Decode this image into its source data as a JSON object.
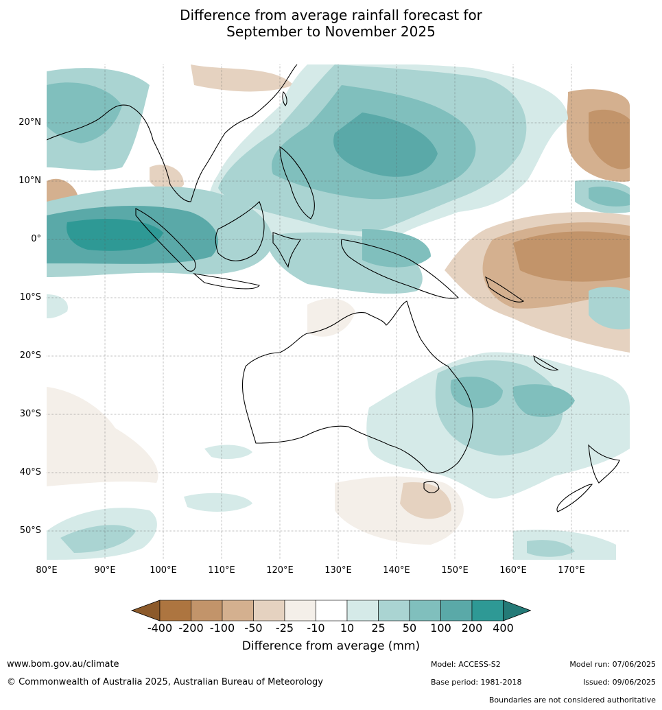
{
  "title_line1": "Difference from average rainfall forecast for",
  "title_line2": "September to November 2025",
  "lat_labels": [
    "20°N",
    "10°N",
    "0°",
    "10°S",
    "20°S",
    "30°S",
    "40°S",
    "50°S"
  ],
  "lon_labels": [
    "80°E",
    "90°E",
    "100°E",
    "110°E",
    "120°E",
    "130°E",
    "140°E",
    "150°E",
    "160°E",
    "170°E"
  ],
  "colorbar": {
    "label": "Difference from average (mm)",
    "ticks": [
      "-400",
      "-200",
      "-100",
      "-50",
      "-25",
      "-10",
      "10",
      "25",
      "50",
      "100",
      "200",
      "400"
    ],
    "colors": [
      "#8c5a2b",
      "#ad7540",
      "#c2946a",
      "#d4b08f",
      "#e5d2c0",
      "#f4efe9",
      "#ffffff",
      "#d5eae8",
      "#aad4d2",
      "#80bfbd",
      "#5aa9a8",
      "#2e9995",
      "#247a77"
    ]
  },
  "footer": {
    "url": "www.bom.gov.au/climate",
    "copyright": "© Commonwealth of Australia 2025, Australian Bureau of Meteorology",
    "model": "Model: ACCESS-S2",
    "base_period": "Base period: 1981-2018",
    "model_run": "Model run: 07/06/2025",
    "issued": "Issued: 09/06/2025",
    "disclaimer": "Boundaries are not considered authoritative"
  }
}
